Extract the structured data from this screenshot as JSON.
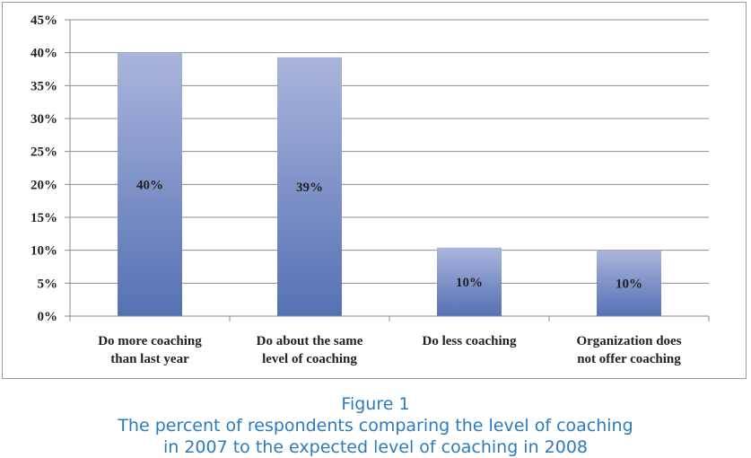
{
  "chart_data": {
    "type": "bar",
    "categories": [
      [
        "Do more coaching",
        "than last year"
      ],
      [
        "Do about the same",
        "level of coaching"
      ],
      [
        "Do less coaching"
      ],
      [
        "Organization does",
        "not offer coaching"
      ]
    ],
    "values": [
      40,
      39.3,
      10.4,
      10
    ],
    "data_labels": [
      "40%",
      "39%",
      "10%",
      "10%"
    ],
    "ylim": [
      0,
      45
    ],
    "yticks": [
      "0%",
      "5%",
      "10%",
      "15%",
      "20%",
      "25%",
      "30%",
      "35%",
      "40%",
      "45%"
    ],
    "ytick_values": [
      0,
      5,
      10,
      15,
      20,
      25,
      30,
      35,
      40,
      45
    ],
    "grid": true,
    "legend": "none",
    "bar_color_top": "#aab5dc",
    "bar_color_bottom": "#5570b4"
  },
  "caption": {
    "figure": "Figure 1",
    "line1": "The percent of respondents comparing the level of coaching",
    "line2": "in 2007 to the expected level of coaching in 2008"
  }
}
